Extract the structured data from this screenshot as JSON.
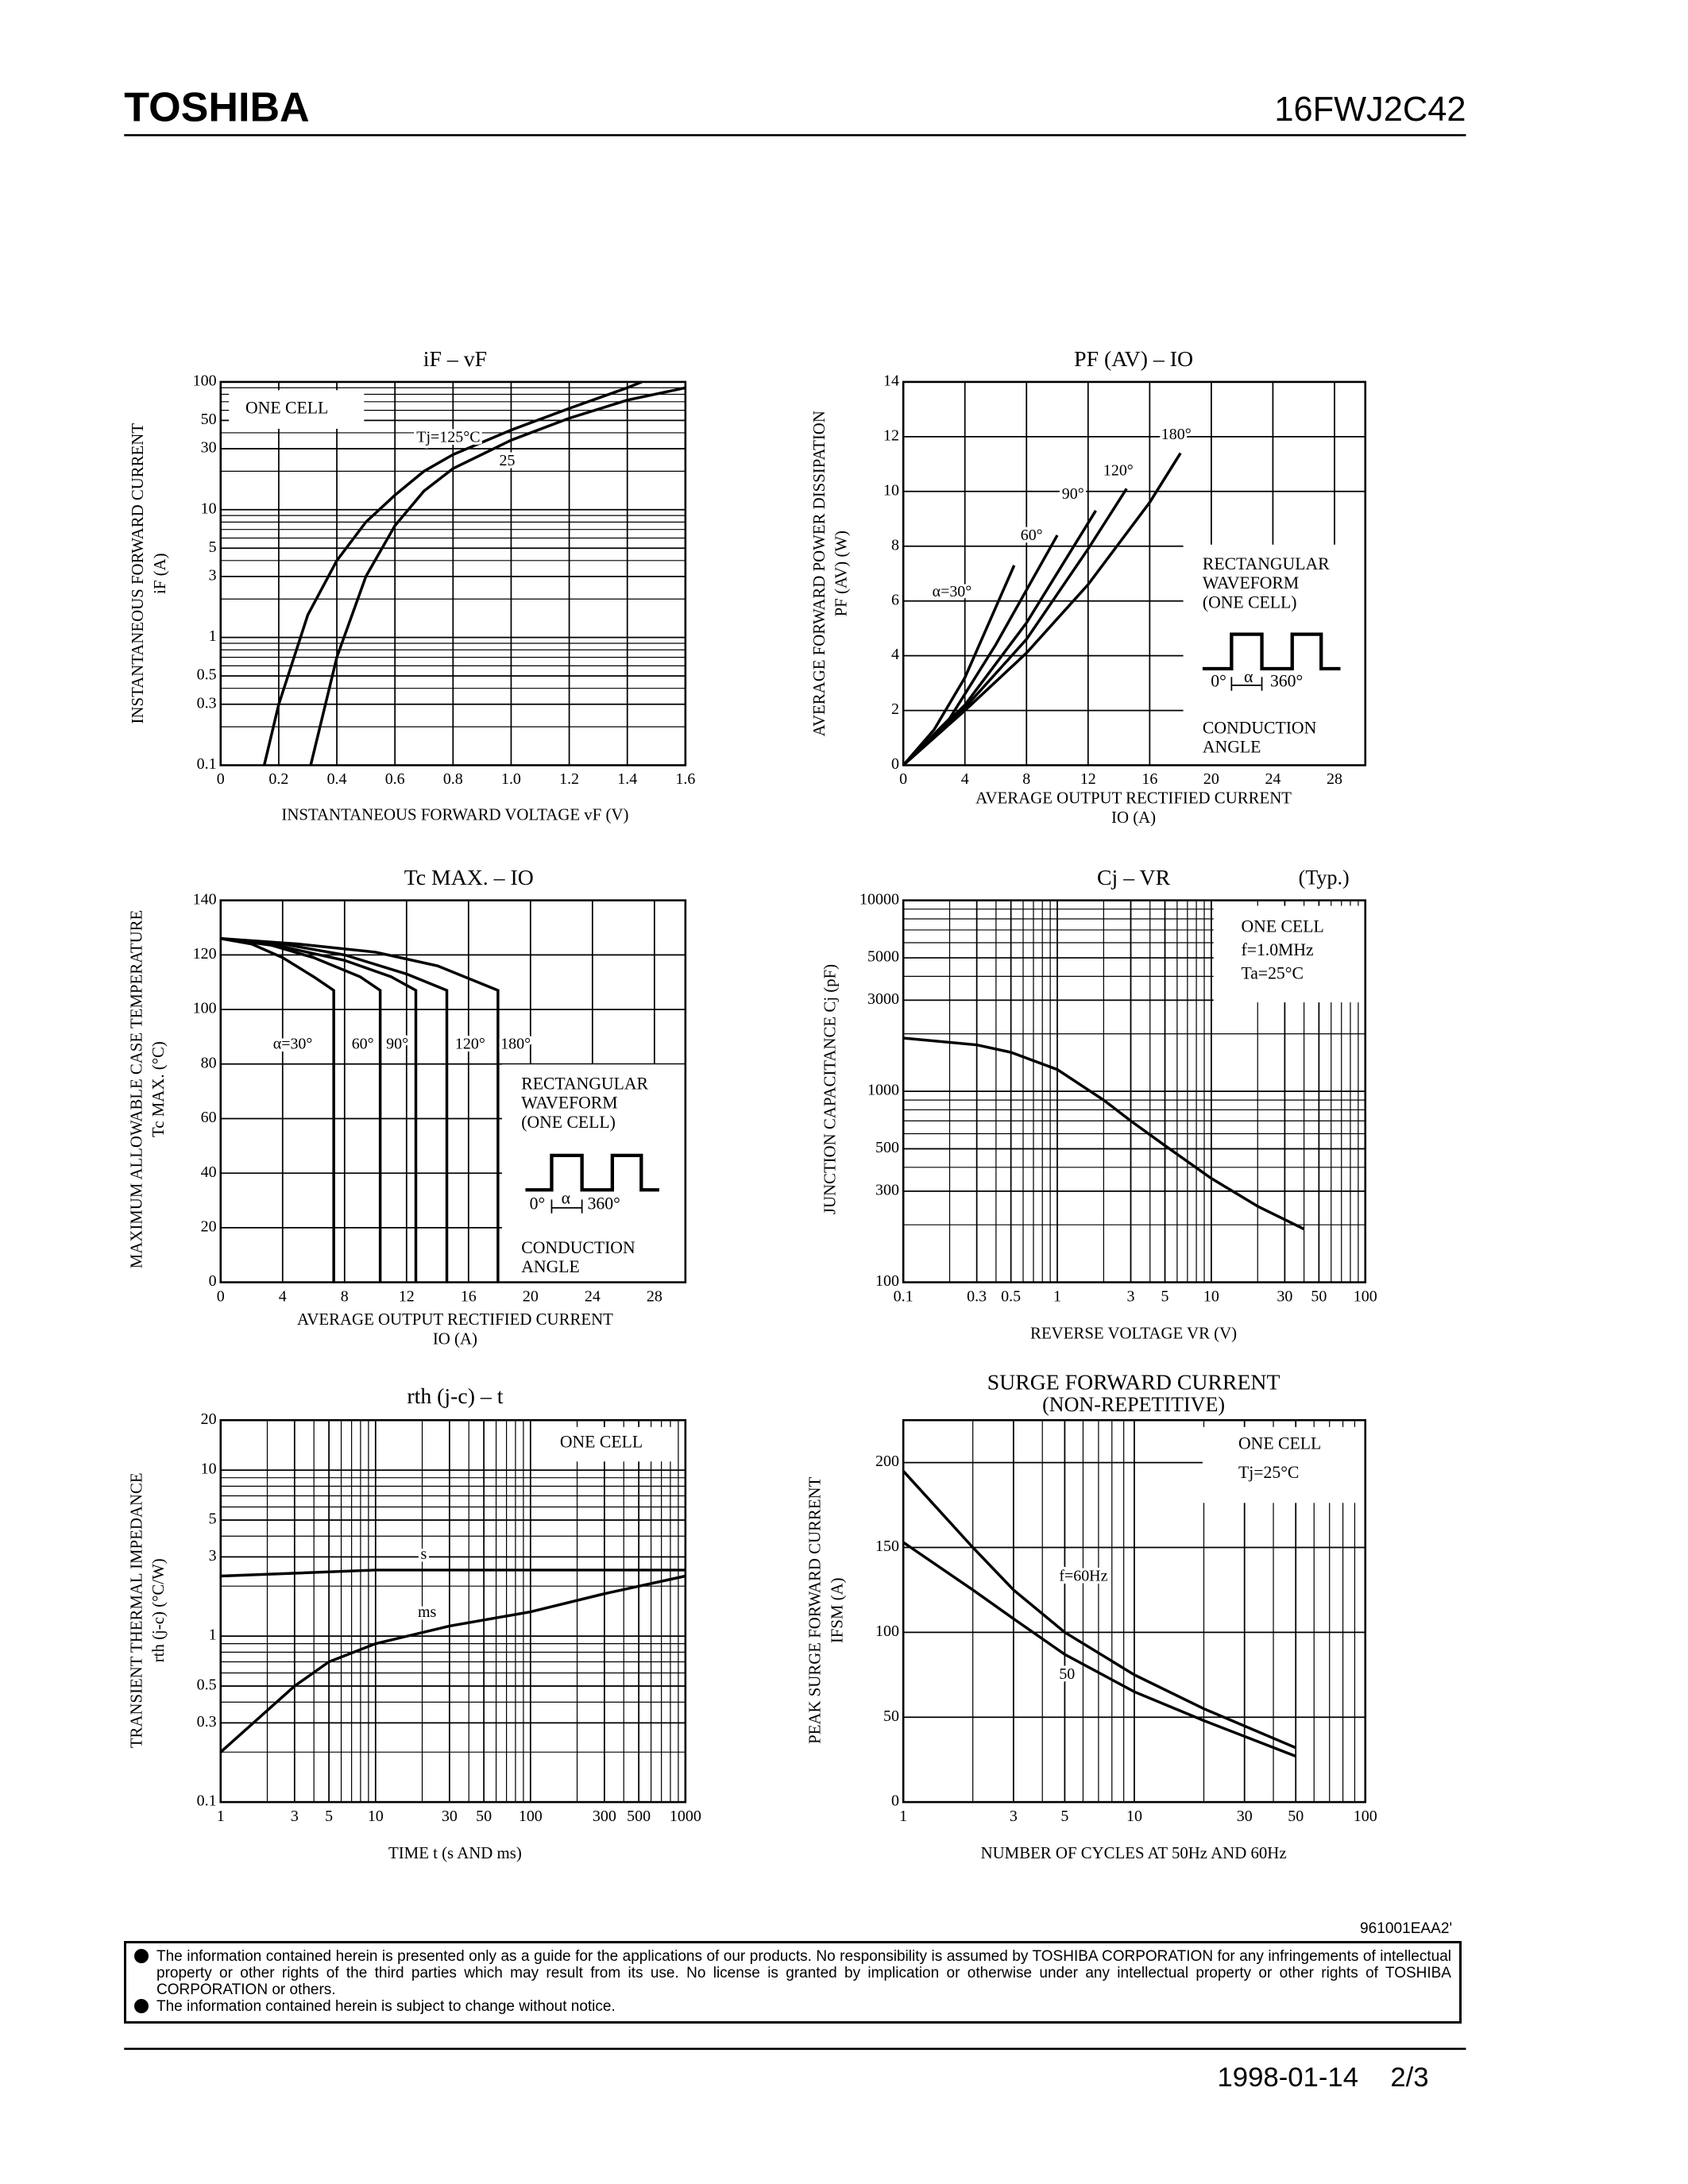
{
  "header": {
    "brand": "TOSHIBA",
    "part": "16FWJ2C42"
  },
  "chart_data": [
    {
      "type": "line",
      "title": "iF – vF",
      "xlabel": [
        "INSTANTANEOUS FORWARD VOLTAGE vF (V)"
      ],
      "ylabel": [
        "INSTANTANEOUS FORWARD CURRENT",
        "iF (A)"
      ],
      "xlim": [
        0,
        1.6
      ],
      "ylim": [
        0.1,
        100
      ],
      "ylog": true,
      "grid": true,
      "xticks": [
        0,
        0.2,
        0.4,
        0.6,
        0.8,
        {
          "value": 1,
          "label": "1.0"
        },
        1.2,
        1.4,
        1.6
      ],
      "yticks": [
        0.1,
        0.3,
        0.5,
        1,
        3,
        5,
        10,
        30,
        50,
        100
      ],
      "series": [
        {
          "name": "Tj=125°C",
          "color": "#000000",
          "x": [
            0.15,
            0.2,
            0.3,
            0.4,
            0.5,
            0.6,
            0.7,
            0.8,
            1.0,
            1.2,
            1.4,
            1.45
          ],
          "values": [
            0.1,
            0.3,
            1.5,
            4,
            8,
            13,
            20,
            27,
            42,
            62,
            90,
            100
          ]
        },
        {
          "name": "25",
          "color": "#000000",
          "x": [
            0.31,
            0.4,
            0.5,
            0.6,
            0.7,
            0.8,
            1.0,
            1.2,
            1.4,
            1.6
          ],
          "values": [
            0.1,
            0.7,
            3,
            7.5,
            14,
            21,
            35,
            52,
            72,
            90
          ]
        }
      ],
      "annotations": [
        "ONE CELL"
      ]
    },
    {
      "type": "line",
      "title": "PF (AV) – IO",
      "xlabel": [
        "AVERAGE OUTPUT RECTIFIED CURRENT",
        "IO (A)"
      ],
      "ylabel": [
        "AVERAGE FORWARD POWER DISSIPATION",
        "PF (AV) (W)"
      ],
      "xlim": [
        0,
        30
      ],
      "ylim": [
        0,
        14
      ],
      "grid": true,
      "xticks": [
        0,
        4,
        8,
        12,
        16,
        20,
        24,
        28
      ],
      "yticks": [
        0,
        2,
        4,
        6,
        8,
        10,
        12,
        14
      ],
      "series": [
        {
          "name": "α=30°",
          "color": "#000000",
          "x": [
            0,
            2,
            4,
            7.2
          ],
          "values": [
            0,
            1.3,
            3.2,
            7.3
          ]
        },
        {
          "name": "60°",
          "color": "#000000",
          "x": [
            0,
            3,
            6,
            10
          ],
          "values": [
            0,
            1.7,
            4.4,
            8.4
          ]
        },
        {
          "name": "90°",
          "color": "#000000",
          "x": [
            0,
            4,
            8,
            12.5
          ],
          "values": [
            0,
            2.2,
            5.2,
            9.3
          ]
        },
        {
          "name": "120°",
          "color": "#000000",
          "x": [
            0,
            4,
            8,
            12,
            14.5
          ],
          "values": [
            0,
            2.1,
            4.6,
            7.9,
            10.1
          ]
        },
        {
          "name": "180°",
          "color": "#000000",
          "x": [
            0,
            4,
            8,
            12,
            16,
            18
          ],
          "values": [
            0,
            2,
            4.1,
            6.6,
            9.6,
            11.4
          ]
        }
      ],
      "annotations": [
        "RECTANGULAR",
        "WAVEFORM",
        "(ONE CELL)",
        "0°",
        "α",
        "360°",
        "CONDUCTION",
        "ANGLE"
      ]
    },
    {
      "type": "line",
      "title": "Tc MAX. – IO",
      "xlabel": [
        "AVERAGE OUTPUT RECTIFIED CURRENT",
        "IO (A)"
      ],
      "ylabel": [
        "MAXIMUM ALLOWABLE CASE TEMPERATURE",
        "Tc MAX. (°C)"
      ],
      "xlim": [
        0,
        30
      ],
      "ylim": [
        0,
        140
      ],
      "grid": true,
      "xticks": [
        0,
        4,
        8,
        12,
        16,
        20,
        24,
        28
      ],
      "yticks": [
        0,
        20,
        40,
        60,
        80,
        100,
        120,
        140
      ],
      "series": [
        {
          "name": "α=30°",
          "color": "#000000",
          "x": [
            0,
            2,
            4,
            6,
            7.3,
            7.3
          ],
          "values": [
            126,
            124,
            119,
            112,
            107,
            0
          ]
        },
        {
          "name": "60°",
          "color": "#000000",
          "x": [
            0,
            3,
            6,
            9,
            10.3,
            10.3
          ],
          "values": [
            126,
            124,
            119,
            112,
            107,
            0
          ]
        },
        {
          "name": "90°",
          "color": "#000000",
          "x": [
            0,
            4,
            8,
            11,
            12.6,
            12.6
          ],
          "values": [
            126,
            123,
            118,
            112,
            107,
            0
          ]
        },
        {
          "name": "120°",
          "color": "#000000",
          "x": [
            0,
            4,
            8,
            12,
            14.6,
            14.6
          ],
          "values": [
            126,
            124,
            120,
            113,
            107,
            0
          ]
        },
        {
          "name": "180°",
          "color": "#000000",
          "x": [
            0,
            5,
            10,
            14,
            17.9,
            17.9
          ],
          "values": [
            126,
            124,
            121,
            116,
            107,
            0
          ]
        }
      ],
      "annotations": [
        "RECTANGULAR",
        "WAVEFORM",
        "(ONE CELL)",
        "0°",
        "α",
        "360°",
        "CONDUCTION",
        "ANGLE"
      ]
    },
    {
      "type": "line",
      "title": "Cj – VR",
      "subtitle": "(Typ.)",
      "xlabel": [
        "REVERSE VOLTAGE VR (V)"
      ],
      "ylabel": [
        "JUNCTION CAPACITANCE Cj (pF)"
      ],
      "xlim": [
        0.1,
        100
      ],
      "ylim": [
        100,
        10000
      ],
      "xlog": true,
      "ylog": true,
      "grid": true,
      "xticks": [
        0.1,
        0.3,
        0.5,
        1,
        3,
        5,
        10,
        30,
        50,
        100
      ],
      "yticks": [
        100,
        300,
        500,
        1000,
        3000,
        5000,
        10000
      ],
      "series": [
        {
          "name": "Cj",
          "color": "#000000",
          "x": [
            0.1,
            0.3,
            0.5,
            1,
            2,
            3,
            5,
            10,
            20,
            40
          ],
          "values": [
            1900,
            1750,
            1600,
            1300,
            900,
            700,
            520,
            350,
            250,
            190
          ]
        }
      ],
      "annotations": [
        "ONE CELL",
        "f=1.0MHz",
        "Ta=25°C"
      ]
    },
    {
      "type": "line",
      "title": "rth (j-c) – t",
      "xlabel": [
        "TIME t (s AND ms)"
      ],
      "ylabel": [
        "TRANSIENT THERMAL IMPEDANCE",
        "rth (j-c) (°C/W)"
      ],
      "xlim": [
        1,
        1000
      ],
      "ylim": [
        0.1,
        20
      ],
      "xlog": true,
      "ylog": true,
      "grid": true,
      "xticks": [
        1,
        3,
        5,
        10,
        30,
        50,
        100,
        300,
        500,
        1000
      ],
      "yticks": [
        0.1,
        0.3,
        0.5,
        1,
        3,
        5,
        10,
        20
      ],
      "series": [
        {
          "name": "s",
          "color": "#000000",
          "x": [
            1,
            10,
            100,
            1000
          ],
          "values": [
            2.3,
            2.5,
            2.5,
            2.5
          ]
        },
        {
          "name": "ms",
          "color": "#000000",
          "x": [
            1,
            3,
            5,
            10,
            30,
            100,
            300,
            1000
          ],
          "values": [
            0.2,
            0.5,
            0.7,
            0.9,
            1.15,
            1.4,
            1.8,
            2.3
          ]
        }
      ],
      "annotations": [
        "ONE CELL"
      ]
    },
    {
      "type": "line",
      "title": "SURGE FORWARD CURRENT",
      "subtitle": "(NON-REPETITIVE)",
      "xlabel": [
        "NUMBER OF CYCLES AT 50Hz AND 60Hz"
      ],
      "ylabel": [
        "PEAK SURGE FORWARD CURRENT",
        "IFSM (A)"
      ],
      "xlim": [
        1,
        100
      ],
      "ylim": [
        0,
        225
      ],
      "xlog": true,
      "grid": true,
      "xticks": [
        1,
        3,
        5,
        10,
        30,
        50,
        100
      ],
      "yticks": [
        0,
        50,
        100,
        150,
        200
      ],
      "series": [
        {
          "name": "f=60Hz",
          "color": "#000000",
          "x": [
            1,
            2,
            3,
            5,
            10,
            20,
            50
          ],
          "values": [
            195,
            150,
            125,
            100,
            75,
            55,
            32
          ]
        },
        {
          "name": "50",
          "color": "#000000",
          "x": [
            1,
            2,
            3,
            5,
            10,
            20,
            50
          ],
          "values": [
            153,
            125,
            108,
            87,
            65,
            48,
            27
          ]
        }
      ],
      "annotations": [
        "ONE CELL",
        "Tj=25°C"
      ]
    }
  ],
  "footer": {
    "code": "961001EAA2'",
    "disclaimer": [
      "The information contained herein is presented only as a guide for the applications of our products. No responsibility is assumed by TOSHIBA CORPORATION for any infringements of intellectual property or other rights of the third parties which may result from its use. No license is granted by implication or otherwise under any intellectual property or other rights of TOSHIBA CORPORATION or others.",
      "The information contained herein is subject to change without notice."
    ],
    "date": "1998-01-14",
    "page": "2/3"
  }
}
